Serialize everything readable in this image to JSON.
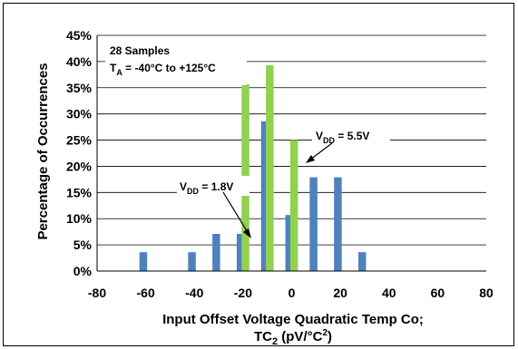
{
  "chart_data": {
    "type": "bar",
    "title": "",
    "xlabel_line1": "Input Offset Voltage Quadratic Temp Co;",
    "xlabel_line2": "TC",
    "xlabel_sub": "2",
    "xlabel_unit_open": " (pV/°C",
    "xlabel_sup": "2",
    "xlabel_unit_close": ")",
    "ylabel": "Percentage of Occurrences",
    "xlim": [
      -80,
      80
    ],
    "ylim": [
      0,
      45
    ],
    "x_ticks": [
      -80,
      -60,
      -40,
      -20,
      0,
      20,
      40,
      60,
      80
    ],
    "y_ticks": [
      0,
      5,
      10,
      15,
      20,
      25,
      30,
      35,
      40,
      45
    ],
    "y_tick_suffix": "%",
    "grid": "horizontal",
    "series": [
      {
        "name": "VDD = 1.8V",
        "color": "#4f81bd",
        "x": [
          -61,
          -41,
          -31,
          -21,
          -11,
          -1,
          9,
          19,
          29
        ],
        "values": [
          3.6,
          3.6,
          7.1,
          7.1,
          28.6,
          10.7,
          17.9,
          17.9,
          3.6
        ]
      },
      {
        "name": "VDD = 5.5V",
        "color": "#92d050",
        "x": [
          -19,
          -9,
          1
        ],
        "values": [
          35.7,
          39.3,
          25.0
        ]
      }
    ],
    "annotations": {
      "samples": "28 Samples",
      "ta_main": "T",
      "ta_sub": "A",
      "ta_range": " = -40°C to +125°C",
      "vdd1_main": "V",
      "vdd1_sub": "DD",
      "vdd1_val": " = 1.8V",
      "vdd2_main": "V",
      "vdd2_sub": "DD",
      "vdd2_val": " = 5.5V"
    }
  }
}
